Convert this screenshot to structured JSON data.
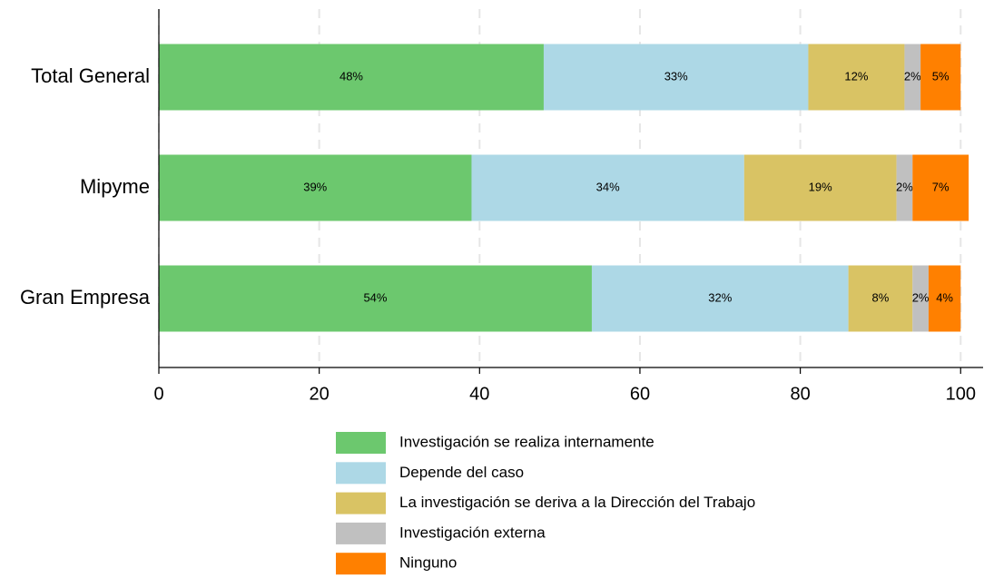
{
  "chart_data": {
    "type": "stacked_barh",
    "categories": [
      "Total General",
      "Mipyme",
      "Gran Empresa"
    ],
    "series": [
      {
        "name": "Investigación se realiza internamente",
        "color": "#6cc86e",
        "values": [
          48,
          39,
          54
        ],
        "value_labels": [
          "48%",
          "39%",
          "54%"
        ]
      },
      {
        "name": "Depende del caso",
        "color": "#add8e6",
        "values": [
          33,
          34,
          32
        ],
        "value_labels": [
          "33%",
          "34%",
          "32%"
        ]
      },
      {
        "name": "La investigación se deriva a la Dirección del Trabajo",
        "color": "#d9c364",
        "values": [
          12,
          19,
          8
        ],
        "value_labels": [
          "12%",
          "19%",
          "8%"
        ]
      },
      {
        "name": "Investigación externa",
        "color": "#c0c0c0",
        "values": [
          2,
          2,
          2
        ],
        "value_labels": [
          "2%",
          "2%",
          "2%"
        ]
      },
      {
        "name": "Ninguno",
        "color": "#ff8000",
        "values": [
          5,
          7,
          4
        ],
        "value_labels": [
          "5%",
          "7%",
          "4%"
        ]
      }
    ],
    "xlim": [
      0,
      102.8
    ],
    "xticks": [
      0,
      20,
      40,
      60,
      80,
      100
    ],
    "grid": true,
    "legend": "bottom"
  }
}
